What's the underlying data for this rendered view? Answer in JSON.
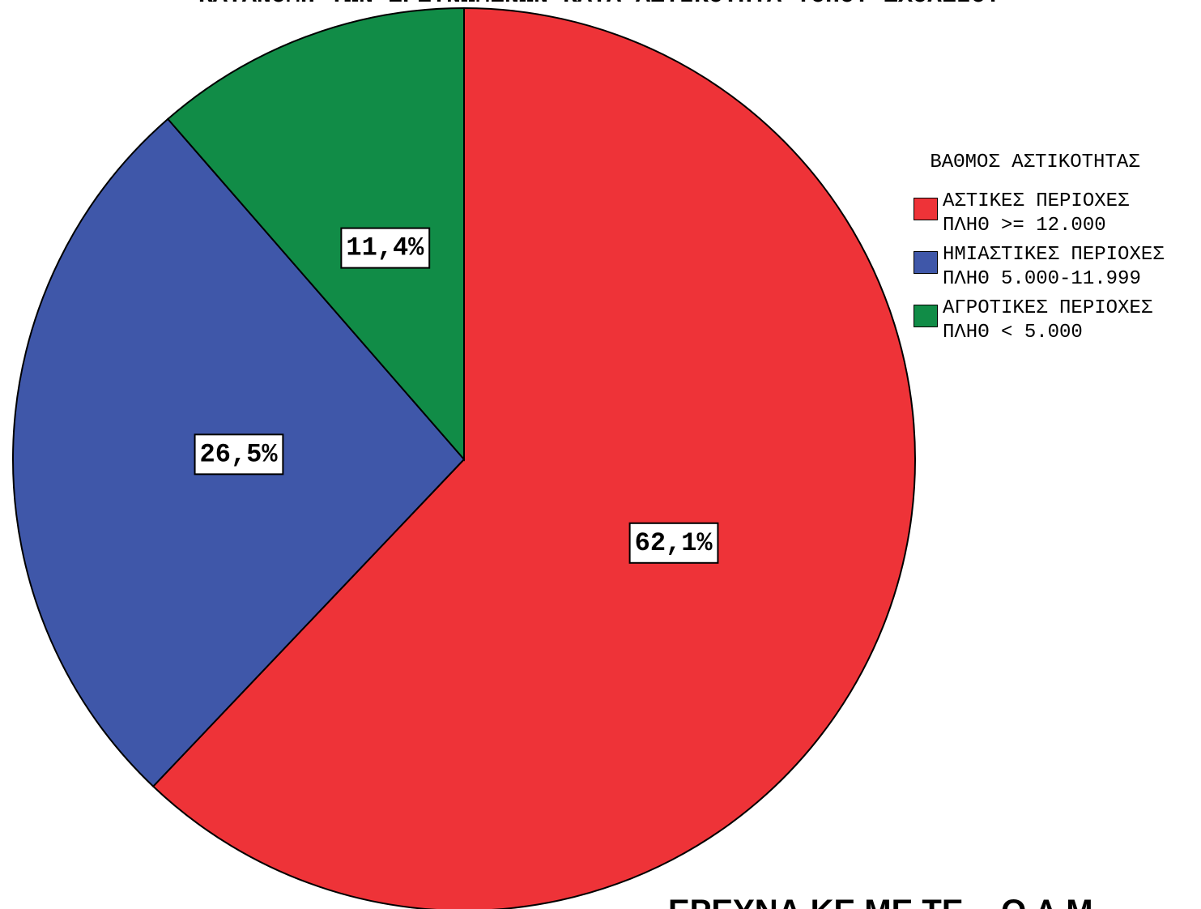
{
  "chart_data": {
    "type": "pie",
    "title": "ΚΑΤΑΝΟΜΗ ΤΩΝ ΕΡΕΥΝΩΜΕΝΩΝ ΚΑΤΑ ΑΣΤΙΚΟΤΗΤΑ ΤΟΠΟΥ ΣΧΟΛΕΙΟΥ",
    "legend_title": "ΒΑΘΜΟΣ ΑΣΤΙΚΟΤΗΤΑΣ",
    "categories": [
      "ΑΣΤΙΚΕΣ ΠΕΡΙΟΧΕΣ ΠΛΗΘ >= 12.000",
      "ΗΜΙΑΣΤΙΚΕΣ ΠΕΡΙΟΧΕΣ ΠΛΗΘ 5.000-11.999",
      "ΑΓΡΟΤΙΚΕΣ ΠΕΡΙΟΧΕΣ ΠΛΗΘ < 5.000"
    ],
    "values": [
      62.1,
      26.5,
      11.4
    ],
    "value_labels": [
      "62,1%",
      "26,5%",
      "11,4%"
    ],
    "colors": [
      "#ee3338",
      "#3f57a9",
      "#118c47"
    ],
    "annotation": "ΕΡΕΥΝΑ ΚΕ.ΜΕ.ΤΕ. - Ο.Λ.Μ."
  }
}
